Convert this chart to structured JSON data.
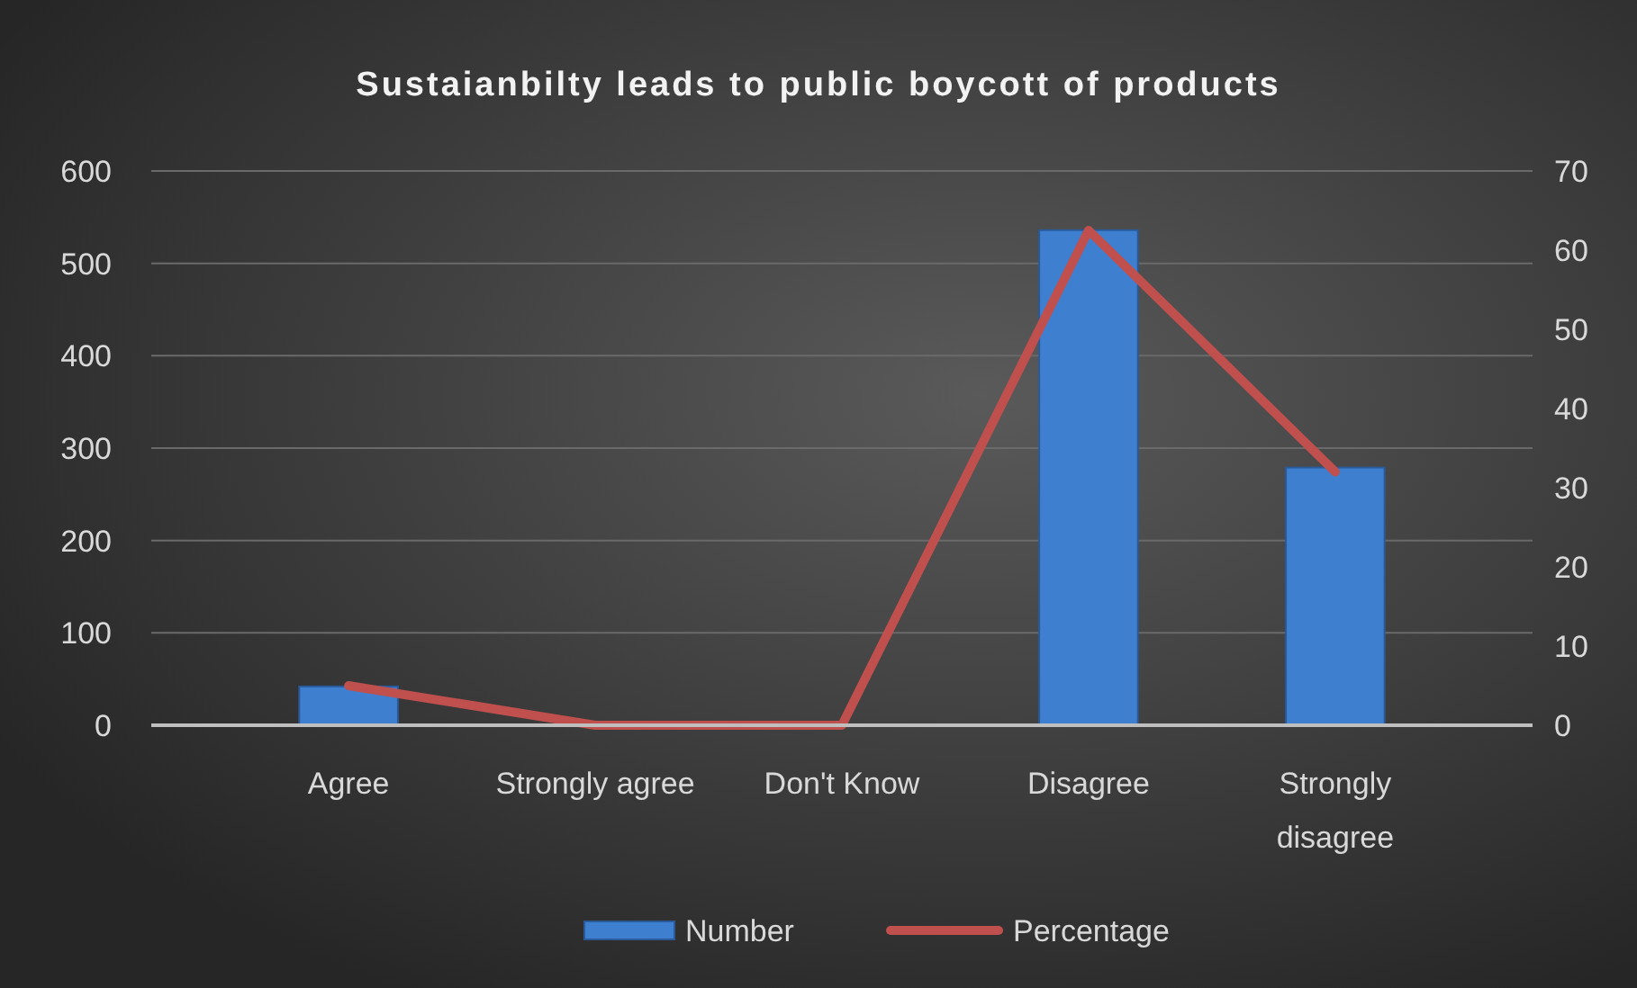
{
  "chart_data": {
    "type": "bar",
    "title": "Sustaianbilty leads to public boycott of products",
    "categories": [
      "Agree",
      "Strongly agree",
      "Don't Know",
      "Disagree",
      "Strongly disagree"
    ],
    "series": [
      {
        "name": "Number",
        "color": "#3f7fd0",
        "values": [
          42,
          0,
          0,
          536,
          279
        ]
      },
      {
        "name": "Percentage",
        "type": "line",
        "axis": "y2",
        "color": "#c0504d",
        "values": [
          5,
          0,
          0,
          62.5,
          32
        ]
      }
    ],
    "ylim": [
      0,
      600
    ],
    "yticks": [
      0,
      100,
      200,
      300,
      400,
      500,
      600
    ],
    "y2lim": [
      0,
      70
    ],
    "y2ticks": [
      0,
      10,
      20,
      30,
      40,
      50,
      60,
      70
    ],
    "grid": "y",
    "legend": "bottom"
  }
}
